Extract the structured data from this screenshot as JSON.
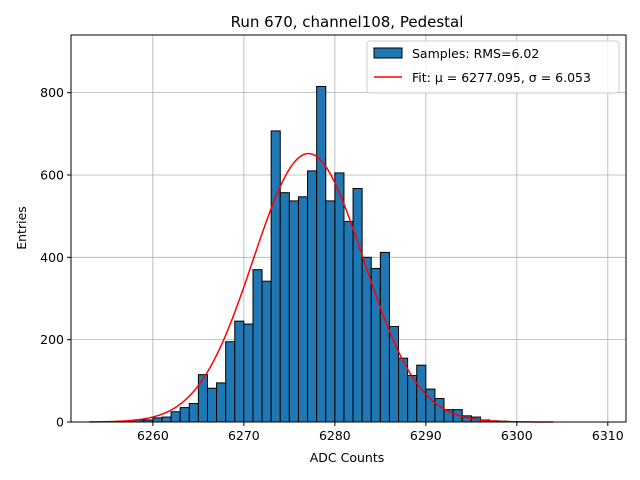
{
  "chart_data": {
    "type": "bar",
    "title": "Run 670, channel108, Pedestal",
    "xlabel": "ADC Counts",
    "ylabel": "Entries",
    "xlim": [
      6251,
      6312
    ],
    "ylim": [
      0,
      940
    ],
    "xticks": [
      6260,
      6270,
      6280,
      6290,
      6300,
      6310
    ],
    "yticks": [
      0,
      200,
      400,
      600,
      800
    ],
    "grid": true,
    "legend_position": "top-right",
    "bin_width": 1,
    "bins": [
      {
        "x": 6256,
        "y": 2
      },
      {
        "x": 6257,
        "y": 2
      },
      {
        "x": 6258,
        "y": 5
      },
      {
        "x": 6259,
        "y": 5
      },
      {
        "x": 6260,
        "y": 10
      },
      {
        "x": 6261,
        "y": 12
      },
      {
        "x": 6262,
        "y": 25
      },
      {
        "x": 6263,
        "y": 35
      },
      {
        "x": 6264,
        "y": 45
      },
      {
        "x": 6265,
        "y": 115
      },
      {
        "x": 6266,
        "y": 82
      },
      {
        "x": 6267,
        "y": 95
      },
      {
        "x": 6268,
        "y": 195
      },
      {
        "x": 6269,
        "y": 245
      },
      {
        "x": 6270,
        "y": 238
      },
      {
        "x": 6271,
        "y": 370
      },
      {
        "x": 6272,
        "y": 342
      },
      {
        "x": 6273,
        "y": 707
      },
      {
        "x": 6274,
        "y": 557
      },
      {
        "x": 6275,
        "y": 537
      },
      {
        "x": 6276,
        "y": 547
      },
      {
        "x": 6277,
        "y": 610
      },
      {
        "x": 6278,
        "y": 815
      },
      {
        "x": 6279,
        "y": 537
      },
      {
        "x": 6280,
        "y": 605
      },
      {
        "x": 6281,
        "y": 487
      },
      {
        "x": 6282,
        "y": 567
      },
      {
        "x": 6283,
        "y": 400
      },
      {
        "x": 6284,
        "y": 373
      },
      {
        "x": 6285,
        "y": 412
      },
      {
        "x": 6286,
        "y": 232
      },
      {
        "x": 6287,
        "y": 155
      },
      {
        "x": 6288,
        "y": 113
      },
      {
        "x": 6289,
        "y": 138
      },
      {
        "x": 6290,
        "y": 80
      },
      {
        "x": 6291,
        "y": 57
      },
      {
        "x": 6292,
        "y": 30
      },
      {
        "x": 6293,
        "y": 30
      },
      {
        "x": 6294,
        "y": 15
      },
      {
        "x": 6295,
        "y": 12
      },
      {
        "x": 6296,
        "y": 5
      },
      {
        "x": 6297,
        "y": 3
      },
      {
        "x": 6298,
        "y": 2
      }
    ],
    "fit": {
      "mu": 6277.095,
      "sigma": 6.053,
      "amplitude": 652,
      "x_start": 6253,
      "x_end": 6304
    },
    "series": [
      {
        "name": "Samples: RMS=6.02",
        "kind": "histogram",
        "color": "#1f77b4",
        "edgecolor": "#000000"
      },
      {
        "name": "Fit: μ = 6277.095, σ = 6.053",
        "kind": "line",
        "color": "#ff0000"
      }
    ]
  }
}
